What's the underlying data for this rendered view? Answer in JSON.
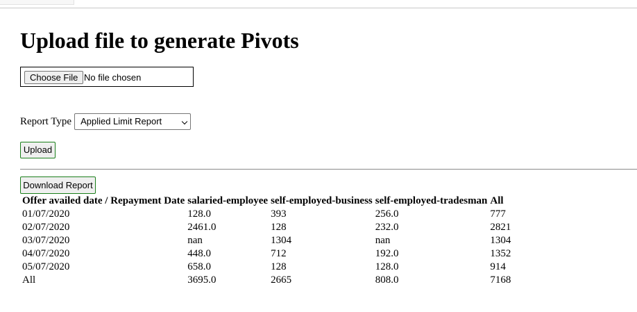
{
  "page": {
    "title": "Upload file to generate Pivots"
  },
  "upload_form": {
    "file_button_label": "Choose File",
    "file_status": "No file chosen",
    "report_type_label": "Report Type",
    "report_type_selected": "Applied Limit Report",
    "upload_button_label": "Upload"
  },
  "results": {
    "download_button_label": "Download Report",
    "table": {
      "headers": [
        "Offer availed date / Repayment Date",
        "salaried-employee",
        "self-employed-business",
        "self-employed-tradesman",
        "All"
      ],
      "rows": [
        [
          "01/07/2020",
          "128.0",
          "393",
          "256.0",
          "777"
        ],
        [
          "02/07/2020",
          "2461.0",
          "128",
          "232.0",
          "2821"
        ],
        [
          "03/07/2020",
          "nan",
          "1304",
          "nan",
          "1304"
        ],
        [
          "04/07/2020",
          "448.0",
          "712",
          "192.0",
          "1352"
        ],
        [
          "05/07/2020",
          "658.0",
          "128",
          "128.0",
          "914"
        ],
        [
          "All",
          "3695.0",
          "2665",
          "808.0",
          "7168"
        ]
      ]
    }
  },
  "colors": {
    "button_border": "#1a7f1a",
    "divider": "#8a8a8a",
    "text": "#000000",
    "background": "#ffffff"
  },
  "icons": {
    "select_arrow": "chevron-down-icon"
  }
}
